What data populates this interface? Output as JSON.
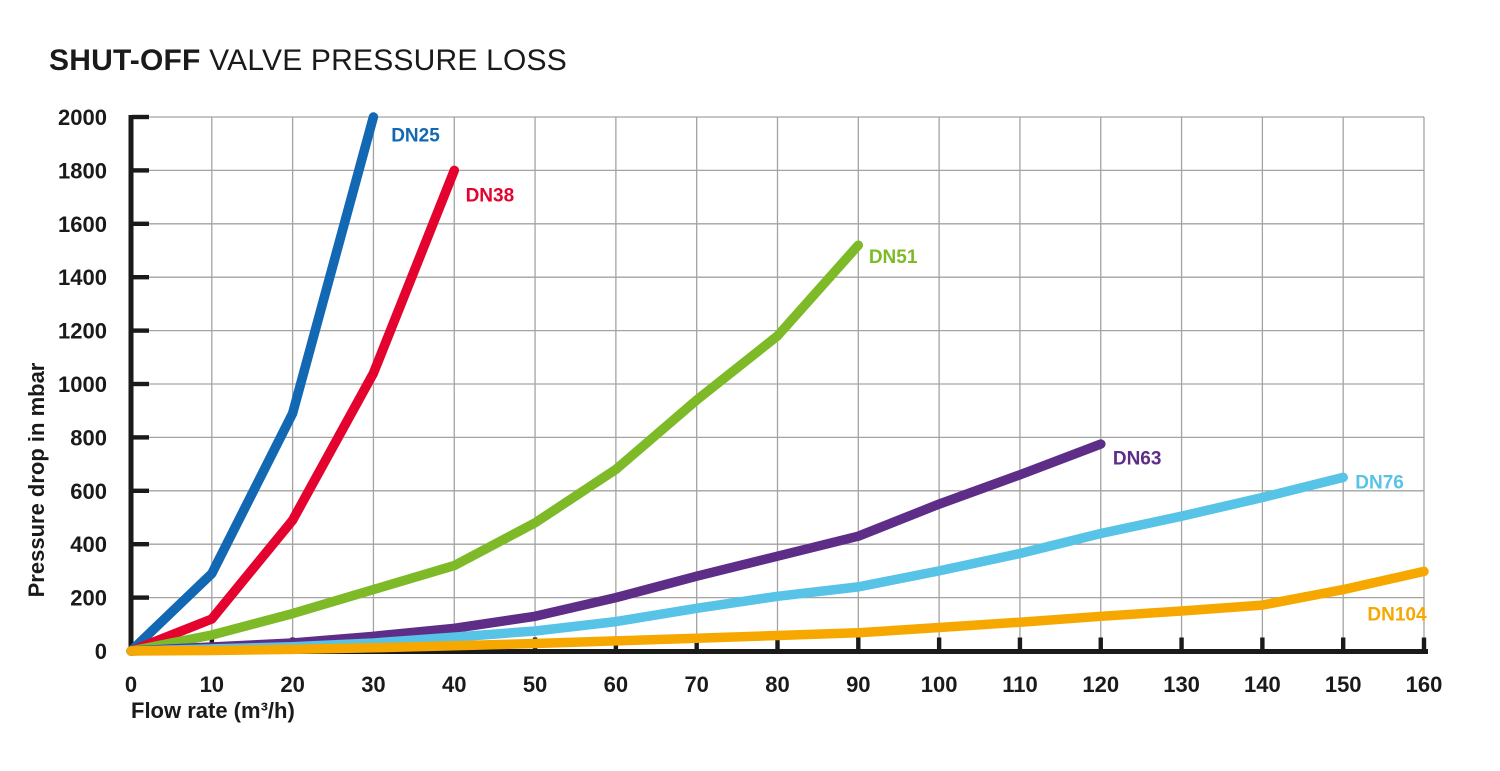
{
  "title": {
    "bold": "SHUT-OFF",
    "regular": " VALVE PRESSURE LOSS"
  },
  "chart_data": {
    "type": "line",
    "title": "SHUT-OFF VALVE PRESSURE LOSS",
    "xlabel": "Flow rate (m³/h)",
    "ylabel": "Pressure drop in mbar",
    "xlim": [
      0,
      160
    ],
    "ylim": [
      0,
      2000
    ],
    "x_ticks": [
      0,
      10,
      20,
      30,
      40,
      50,
      60,
      70,
      80,
      90,
      100,
      110,
      120,
      130,
      140,
      150,
      160
    ],
    "y_ticks": [
      0,
      200,
      400,
      600,
      800,
      1000,
      1200,
      1400,
      1600,
      1800,
      2000
    ],
    "grid": true,
    "legend_position": "inline-end-of-curve",
    "series": [
      {
        "name": "DN25",
        "label": "DN25",
        "color": "#1268b3",
        "points": [
          [
            0,
            0
          ],
          [
            10,
            290
          ],
          [
            20,
            890
          ],
          [
            30,
            2000
          ]
        ],
        "label_pos": [
          32.2,
          1935
        ]
      },
      {
        "name": "DN38",
        "label": "DN38",
        "color": "#e4032e",
        "points": [
          [
            0,
            0
          ],
          [
            10,
            120
          ],
          [
            20,
            490
          ],
          [
            30,
            1040
          ],
          [
            40,
            1800
          ]
        ],
        "label_pos": [
          41.4,
          1710
        ]
      },
      {
        "name": "DN51",
        "label": "DN51",
        "color": "#7eba28",
        "points": [
          [
            0,
            0
          ],
          [
            10,
            60
          ],
          [
            20,
            140
          ],
          [
            30,
            230
          ],
          [
            40,
            320
          ],
          [
            50,
            480
          ],
          [
            60,
            680
          ],
          [
            70,
            940
          ],
          [
            80,
            1180
          ],
          [
            90,
            1520
          ]
        ],
        "label_pos": [
          91.3,
          1480
        ]
      },
      {
        "name": "DN63",
        "label": "DN63",
        "color": "#5e2d87",
        "points": [
          [
            0,
            0
          ],
          [
            10,
            15
          ],
          [
            20,
            30
          ],
          [
            30,
            55
          ],
          [
            40,
            85
          ],
          [
            50,
            130
          ],
          [
            60,
            200
          ],
          [
            70,
            280
          ],
          [
            80,
            355
          ],
          [
            90,
            430
          ],
          [
            100,
            550
          ],
          [
            110,
            660
          ],
          [
            120,
            775
          ]
        ],
        "label_pos": [
          121.5,
          725
        ]
      },
      {
        "name": "DN76",
        "label": "DN76",
        "color": "#56c3e7",
        "points": [
          [
            0,
            0
          ],
          [
            10,
            8
          ],
          [
            20,
            16
          ],
          [
            30,
            30
          ],
          [
            40,
            52
          ],
          [
            50,
            75
          ],
          [
            60,
            110
          ],
          [
            70,
            160
          ],
          [
            80,
            205
          ],
          [
            90,
            240
          ],
          [
            100,
            300
          ],
          [
            110,
            365
          ],
          [
            120,
            440
          ],
          [
            130,
            505
          ],
          [
            140,
            575
          ],
          [
            150,
            650
          ]
        ],
        "label_pos": [
          151.5,
          635
        ]
      },
      {
        "name": "DN104",
        "label": "DN104",
        "color": "#f6a800",
        "points": [
          [
            0,
            0
          ],
          [
            10,
            2
          ],
          [
            20,
            6
          ],
          [
            30,
            12
          ],
          [
            40,
            20
          ],
          [
            50,
            28
          ],
          [
            60,
            38
          ],
          [
            70,
            48
          ],
          [
            80,
            58
          ],
          [
            90,
            68
          ],
          [
            100,
            88
          ],
          [
            110,
            108
          ],
          [
            120,
            130
          ],
          [
            130,
            150
          ],
          [
            140,
            172
          ],
          [
            150,
            230
          ],
          [
            160,
            298
          ]
        ],
        "label_pos": [
          153.0,
          140
        ]
      }
    ]
  },
  "colors": {
    "background": "#ffffff",
    "axis": "#1a1a1a",
    "grid": "#a3a3a2",
    "text": "#1a1a1a"
  }
}
